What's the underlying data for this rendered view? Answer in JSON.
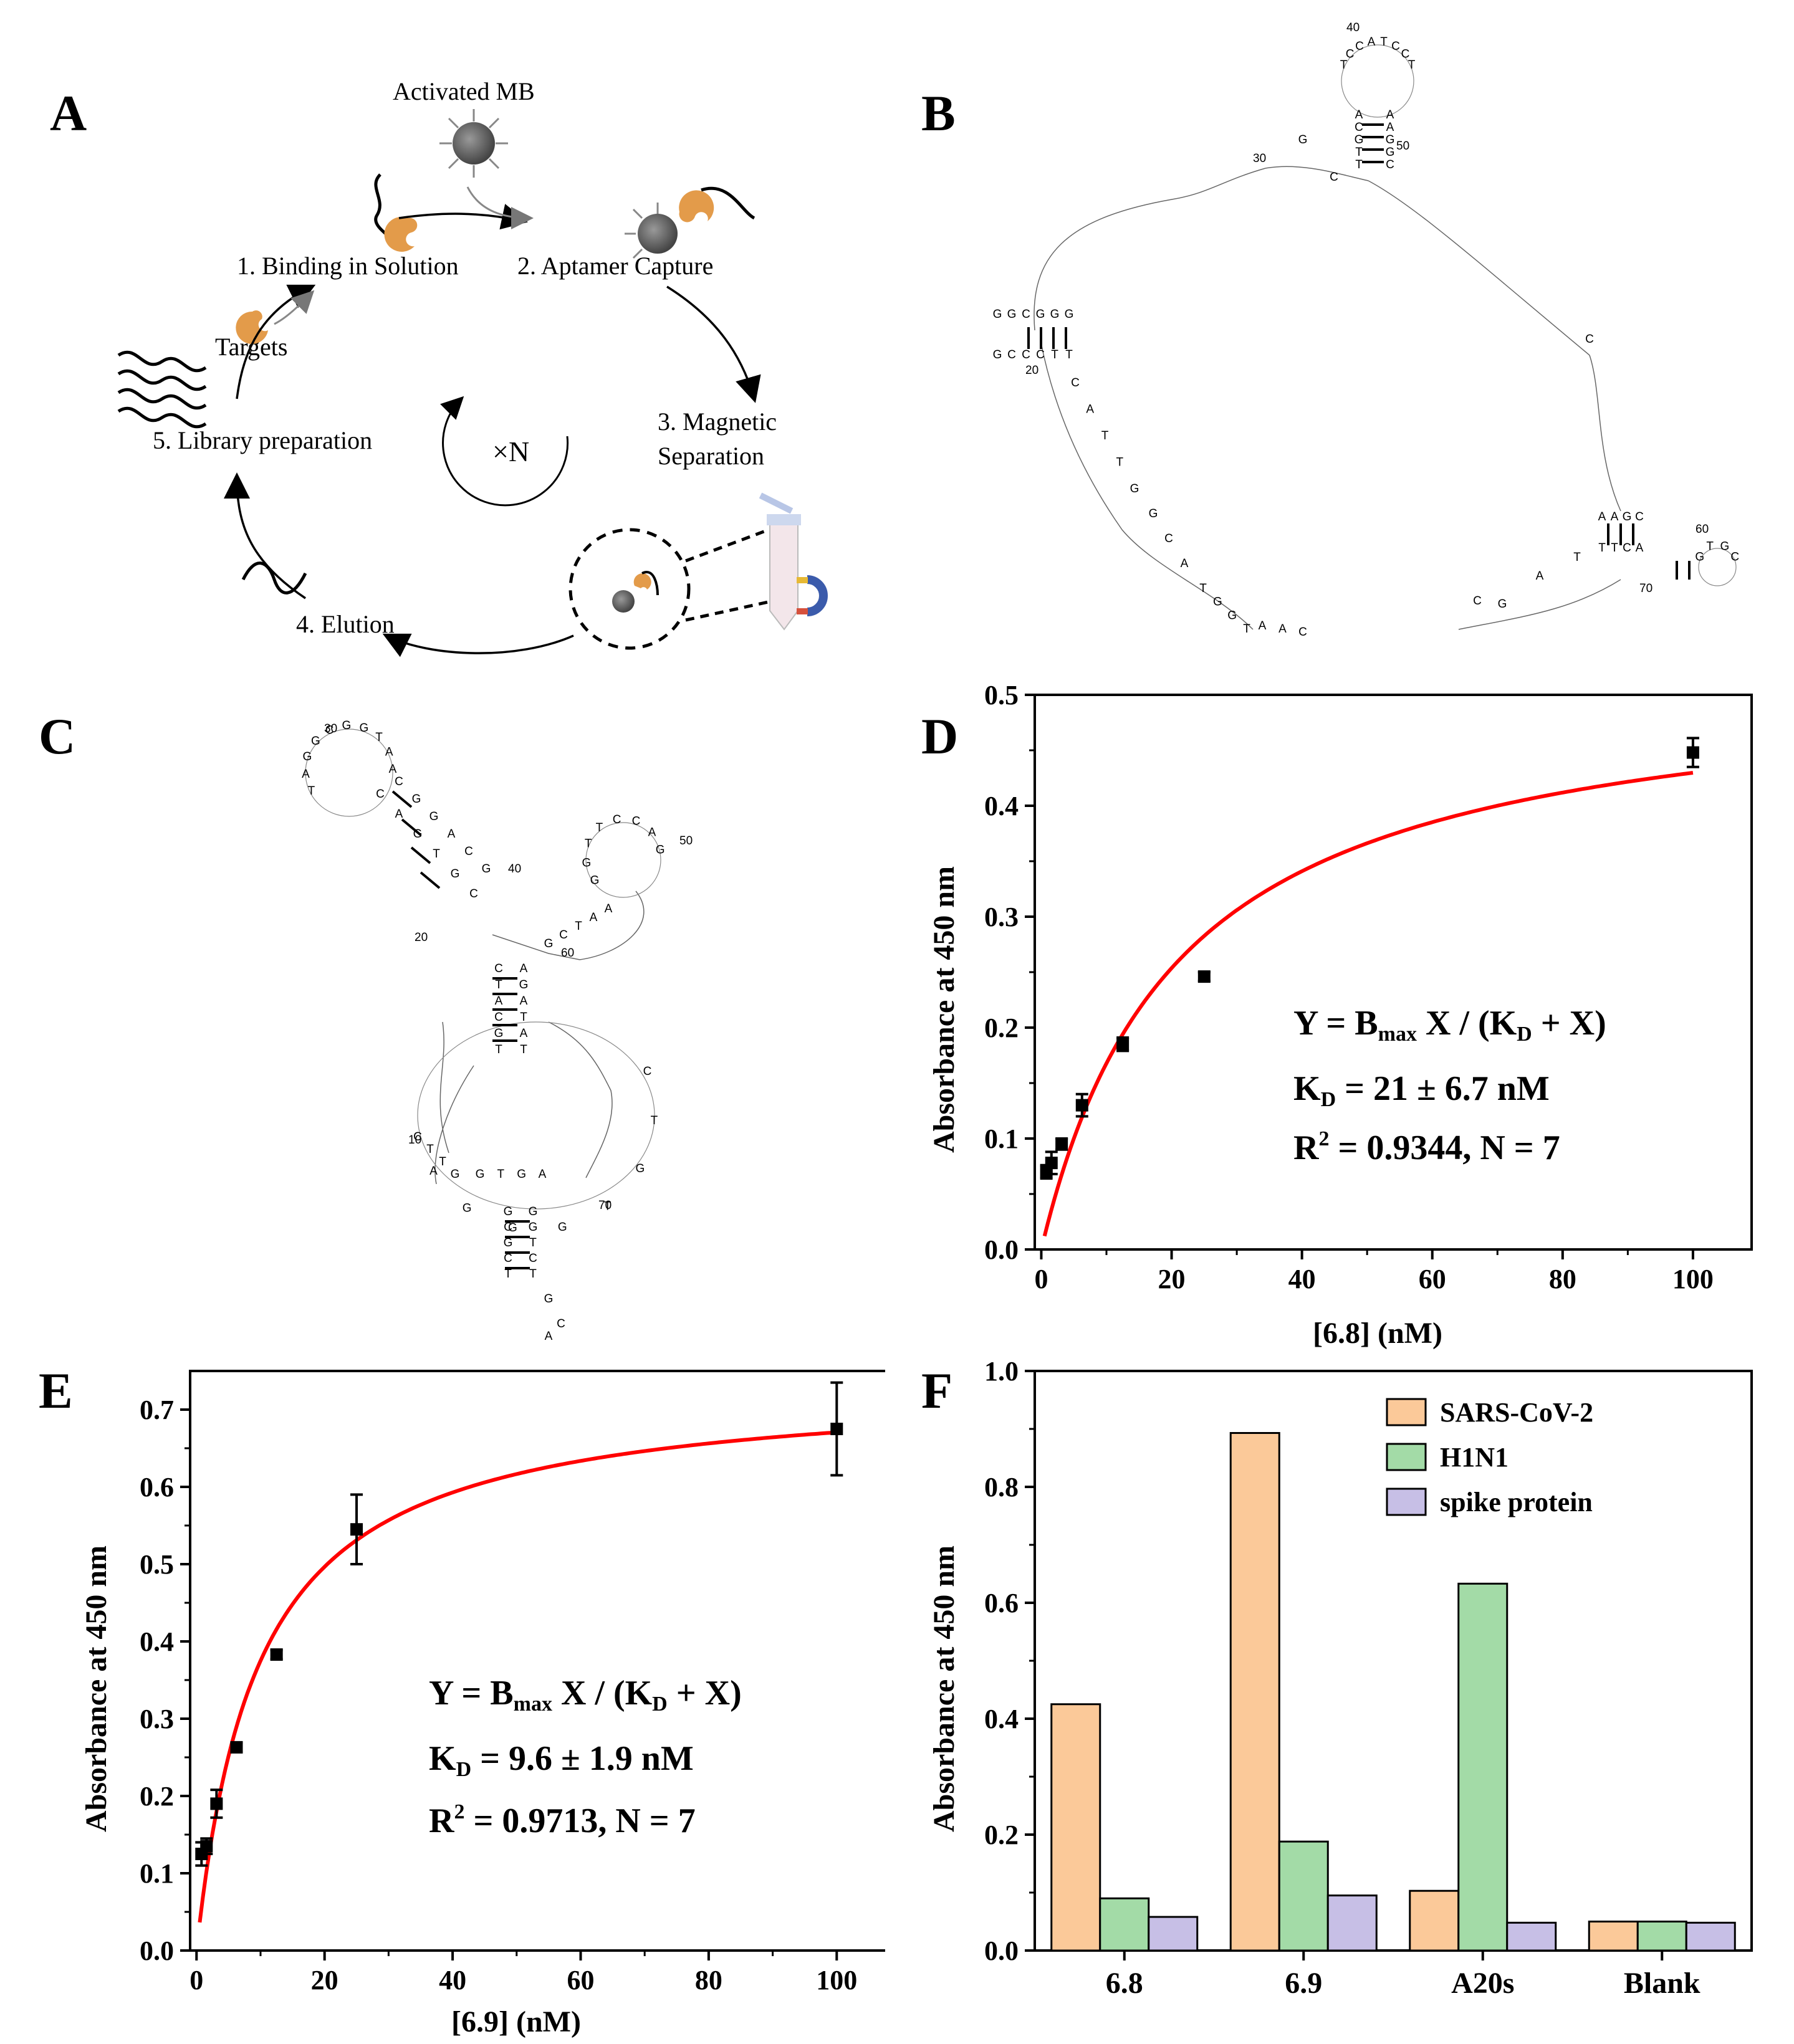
{
  "panels": {
    "A": "A",
    "B": "B",
    "C": "C",
    "D": "D",
    "E": "E",
    "F": "F"
  },
  "panelA": {
    "activated_mb": "Activated MB",
    "targets": "Targets",
    "step1": "1. Binding  in Solution",
    "step2": "2. Aptamer Capture",
    "step3a": "3. Magnetic",
    "step3b": "Separation",
    "step4": "4. Elution",
    "step5": "5. Library preparation",
    "cycle": "×N"
  },
  "panelB": {
    "nums": {
      "n20": "20",
      "n30": "30",
      "n40": "40",
      "n50": "50",
      "n60": "60",
      "n70": "70"
    },
    "bases": [
      "G",
      "G",
      "C",
      "G",
      "G",
      "G",
      "G",
      "C",
      "C",
      "C",
      "T",
      "T",
      "C",
      "A",
      "T",
      "T",
      "G",
      "G",
      "C",
      "A",
      "T",
      "G",
      "G",
      "T",
      "A",
      "A",
      "C",
      "G",
      "C",
      "T",
      "C",
      "C",
      "A",
      "T",
      "C",
      "C",
      "T",
      "A",
      "C",
      "G",
      "T",
      "T",
      "A",
      "A",
      "G",
      "G",
      "C",
      "C",
      "G",
      "C",
      "A",
      "A",
      "G",
      "C",
      "T",
      "T",
      "C",
      "A",
      "G",
      "T",
      "G",
      "C",
      "A",
      "T",
      "C",
      "C",
      "G",
      "A",
      "T",
      "A",
      "A"
    ]
  },
  "panelC": {
    "nums": {
      "n10": "10",
      "n20": "20",
      "n30": "30",
      "n40": "40",
      "n50": "50",
      "n60": "60",
      "n70": "70"
    },
    "bases": [
      "C",
      "T",
      "T",
      "G",
      "G",
      "T",
      "G",
      "A",
      "G",
      "C",
      "G",
      "C",
      "T",
      "G",
      "G",
      "T",
      "C",
      "T",
      "G",
      "C",
      "A",
      "C",
      "T",
      "G",
      "T",
      "G",
      "G",
      "G",
      "A",
      "T",
      "A",
      "G",
      "G",
      "C",
      "G",
      "G",
      "T",
      "A",
      "A",
      "C",
      "A",
      "G",
      "T",
      "G",
      "C",
      "C",
      "G",
      "G",
      "A",
      "C",
      "G",
      "C",
      "T",
      "A",
      "C",
      "G",
      "T",
      "A",
      "G",
      "A",
      "T",
      "A",
      "T",
      "G",
      "G",
      "T",
      "T",
      "C",
      "C",
      "A",
      "G",
      "G",
      "C",
      "T",
      "A",
      "A"
    ]
  },
  "fit_equation": {
    "y": "Y = B",
    "max": "max",
    "mid": " X / (K",
    "d": "D",
    "end": " + X)"
  },
  "fit_kd_sub": "D",
  "fit_r2_sup": "2",
  "chart_data": [
    {
      "id": "D",
      "type": "scatter",
      "title": "",
      "xlabel": "[6.8] (nM)",
      "ylabel": "Absorbance at 450 nm",
      "xlim": [
        -1,
        109
      ],
      "ylim": [
        0,
        0.5
      ],
      "xticks": [
        "0",
        "20",
        "40",
        "60",
        "80",
        "100"
      ],
      "yticks": [
        "0.0",
        "0.1",
        "0.2",
        "0.3",
        "0.4",
        "0.5"
      ],
      "x": [
        0.78,
        1.56,
        3.125,
        6.25,
        12.5,
        25,
        100
      ],
      "y": [
        0.07,
        0.078,
        0.095,
        0.13,
        0.185,
        0.246,
        0.448
      ],
      "err": [
        0.006,
        0.01,
        0.005,
        0.01,
        0.006,
        0.004,
        0.013
      ],
      "fit": {
        "Bmax": 0.52,
        "KD": 21
      },
      "annotation": {
        "kd": "K",
        "kd_text": " = 21 ± 6.7 nM",
        "r2": "R",
        "r2_text": " = 0.9344, N = 7"
      }
    },
    {
      "id": "E",
      "type": "scatter",
      "title": "",
      "xlabel": "[6.9] (nM)",
      "ylabel": "Absorbance at 450 nm",
      "xlim": [
        -1,
        110
      ],
      "ylim": [
        0,
        0.75
      ],
      "xticks": [
        "0",
        "20",
        "40",
        "60",
        "80",
        "100"
      ],
      "yticks": [
        "0.0",
        "0.1",
        "0.2",
        "0.3",
        "0.4",
        "0.5",
        "0.6",
        "0.7"
      ],
      "x": [
        0.78,
        1.56,
        3.125,
        6.25,
        12.5,
        25,
        100
      ],
      "y": [
        0.125,
        0.135,
        0.19,
        0.263,
        0.383,
        0.545,
        0.675
      ],
      "err": [
        0.015,
        0.01,
        0.018,
        0.006,
        0.006,
        0.045,
        0.06
      ],
      "fit": {
        "Bmax": 0.735,
        "KD": 9.6
      },
      "annotation": {
        "kd": "K",
        "kd_text": " = 9.6 ± 1.9 nM",
        "r2": "R",
        "r2_text": " = 0.9713, N = 7"
      }
    },
    {
      "id": "F",
      "type": "bar",
      "title": "",
      "xlabel": "",
      "ylabel": "Absorbance at 450 nm",
      "ylim": [
        0,
        1.0
      ],
      "yticks": [
        "0.0",
        "0.2",
        "0.4",
        "0.6",
        "0.8",
        "1.0"
      ],
      "categories": [
        "6.8",
        "6.9",
        "A20s",
        "Blank"
      ],
      "series": [
        {
          "name": "SARS-CoV-2",
          "color": "#fbc999",
          "values": [
            0.425,
            0.893,
            0.103,
            0.05
          ]
        },
        {
          "name": "H1N1",
          "color": "#a3dba7",
          "values": [
            0.09,
            0.188,
            0.633,
            0.05
          ]
        },
        {
          "name": "spike protein",
          "color": "#c7bfe6",
          "values": [
            0.058,
            0.095,
            0.048,
            0.048
          ]
        }
      ]
    }
  ]
}
